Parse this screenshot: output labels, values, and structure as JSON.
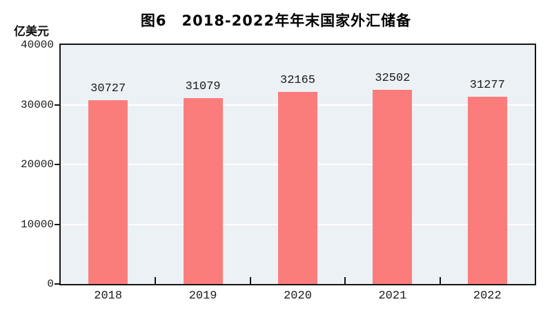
{
  "page": {
    "background": "#ffffff",
    "title": "图6　2018-2022年年末国家外汇储备",
    "unit_label": "亿美元"
  },
  "chart_data": {
    "type": "bar",
    "title": "图6　2018-2022年年末国家外汇储备",
    "categories": [
      "2018",
      "2019",
      "2020",
      "2021",
      "2022"
    ],
    "values": [
      30727,
      31079,
      32165,
      32502,
      31277
    ],
    "data_labels": [
      "30727",
      "31079",
      "32165",
      "32502",
      "31277"
    ],
    "xlabel": "",
    "ylabel": "亿美元",
    "ylim": [
      0,
      40000
    ],
    "ytick_interval": 10000,
    "ytick_labels": [
      "0",
      "10000",
      "20000",
      "30000",
      "40000"
    ],
    "grid": "horizontal",
    "legend_position": "none",
    "colors": {
      "bar": "#FB7D7B",
      "plot_background": "#ECF1F6",
      "gridline": "#FFFFFF",
      "axis": "#141414",
      "text": "#1a1a1a"
    }
  }
}
